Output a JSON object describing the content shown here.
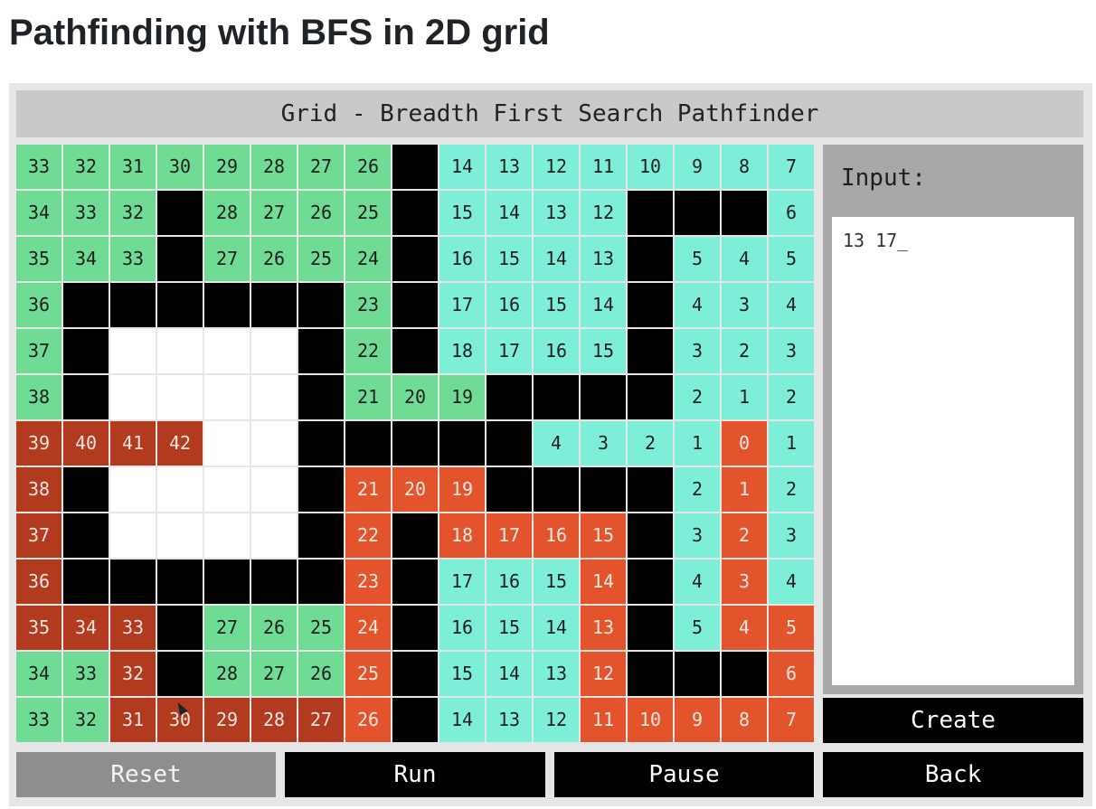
{
  "page": {
    "heading": "Pathfinding with BFS in 2D grid"
  },
  "window": {
    "title": "Grid - Breadth First Search Pathfinder"
  },
  "legend_colors": {
    "g": "#6fdb94",
    "c": "#7deed8",
    "r": "#b23a1f",
    "o": "#e4542c",
    "w": "#000000",
    "e": "#ffffff"
  },
  "grid": {
    "rows": [
      [
        [
          "g",
          "33"
        ],
        [
          "g",
          "32"
        ],
        [
          "g",
          "31"
        ],
        [
          "g",
          "30"
        ],
        [
          "g",
          "29"
        ],
        [
          "g",
          "28"
        ],
        [
          "g",
          "27"
        ],
        [
          "g",
          "26"
        ],
        [
          "w",
          ""
        ],
        [
          "c",
          "14"
        ],
        [
          "c",
          "13"
        ],
        [
          "c",
          "12"
        ],
        [
          "c",
          "11"
        ],
        [
          "c",
          "10"
        ],
        [
          "c",
          "9"
        ],
        [
          "c",
          "8"
        ],
        [
          "c",
          "7"
        ]
      ],
      [
        [
          "g",
          "34"
        ],
        [
          "g",
          "33"
        ],
        [
          "g",
          "32"
        ],
        [
          "w",
          ""
        ],
        [
          "g",
          "28"
        ],
        [
          "g",
          "27"
        ],
        [
          "g",
          "26"
        ],
        [
          "g",
          "25"
        ],
        [
          "w",
          ""
        ],
        [
          "c",
          "15"
        ],
        [
          "c",
          "14"
        ],
        [
          "c",
          "13"
        ],
        [
          "c",
          "12"
        ],
        [
          "w",
          ""
        ],
        [
          "w",
          ""
        ],
        [
          "w",
          ""
        ],
        [
          "c",
          "6"
        ]
      ],
      [
        [
          "g",
          "35"
        ],
        [
          "g",
          "34"
        ],
        [
          "g",
          "33"
        ],
        [
          "w",
          ""
        ],
        [
          "g",
          "27"
        ],
        [
          "g",
          "26"
        ],
        [
          "g",
          "25"
        ],
        [
          "g",
          "24"
        ],
        [
          "w",
          ""
        ],
        [
          "c",
          "16"
        ],
        [
          "c",
          "15"
        ],
        [
          "c",
          "14"
        ],
        [
          "c",
          "13"
        ],
        [
          "w",
          ""
        ],
        [
          "c",
          "5"
        ],
        [
          "c",
          "4"
        ],
        [
          "c",
          "5"
        ]
      ],
      [
        [
          "g",
          "36"
        ],
        [
          "w",
          ""
        ],
        [
          "w",
          ""
        ],
        [
          "w",
          ""
        ],
        [
          "w",
          ""
        ],
        [
          "w",
          ""
        ],
        [
          "w",
          ""
        ],
        [
          "g",
          "23"
        ],
        [
          "w",
          ""
        ],
        [
          "c",
          "17"
        ],
        [
          "c",
          "16"
        ],
        [
          "c",
          "15"
        ],
        [
          "c",
          "14"
        ],
        [
          "w",
          ""
        ],
        [
          "c",
          "4"
        ],
        [
          "c",
          "3"
        ],
        [
          "c",
          "4"
        ]
      ],
      [
        [
          "g",
          "37"
        ],
        [
          "w",
          ""
        ],
        [
          "e",
          ""
        ],
        [
          "e",
          ""
        ],
        [
          "e",
          ""
        ],
        [
          "e",
          ""
        ],
        [
          "w",
          ""
        ],
        [
          "g",
          "22"
        ],
        [
          "w",
          ""
        ],
        [
          "c",
          "18"
        ],
        [
          "c",
          "17"
        ],
        [
          "c",
          "16"
        ],
        [
          "c",
          "15"
        ],
        [
          "w",
          ""
        ],
        [
          "c",
          "3"
        ],
        [
          "c",
          "2"
        ],
        [
          "c",
          "3"
        ]
      ],
      [
        [
          "g",
          "38"
        ],
        [
          "w",
          ""
        ],
        [
          "e",
          ""
        ],
        [
          "e",
          ""
        ],
        [
          "e",
          ""
        ],
        [
          "e",
          ""
        ],
        [
          "w",
          ""
        ],
        [
          "g",
          "21"
        ],
        [
          "g",
          "20"
        ],
        [
          "g",
          "19"
        ],
        [
          "w",
          ""
        ],
        [
          "w",
          ""
        ],
        [
          "w",
          ""
        ],
        [
          "w",
          ""
        ],
        [
          "c",
          "2"
        ],
        [
          "c",
          "1"
        ],
        [
          "c",
          "2"
        ]
      ],
      [
        [
          "r",
          "39"
        ],
        [
          "r",
          "40"
        ],
        [
          "r",
          "41"
        ],
        [
          "r",
          "42"
        ],
        [
          "e",
          ""
        ],
        [
          "e",
          ""
        ],
        [
          "w",
          ""
        ],
        [
          "w",
          ""
        ],
        [
          "w",
          ""
        ],
        [
          "w",
          ""
        ],
        [
          "w",
          ""
        ],
        [
          "c",
          "4"
        ],
        [
          "c",
          "3"
        ],
        [
          "c",
          "2"
        ],
        [
          "c",
          "1"
        ],
        [
          "o",
          "0"
        ],
        [
          "c",
          "1"
        ]
      ],
      [
        [
          "r",
          "38"
        ],
        [
          "w",
          ""
        ],
        [
          "e",
          ""
        ],
        [
          "e",
          ""
        ],
        [
          "e",
          ""
        ],
        [
          "e",
          ""
        ],
        [
          "w",
          ""
        ],
        [
          "o",
          "21"
        ],
        [
          "o",
          "20"
        ],
        [
          "o",
          "19"
        ],
        [
          "w",
          ""
        ],
        [
          "w",
          ""
        ],
        [
          "w",
          ""
        ],
        [
          "w",
          ""
        ],
        [
          "c",
          "2"
        ],
        [
          "o",
          "1"
        ],
        [
          "c",
          "2"
        ]
      ],
      [
        [
          "r",
          "37"
        ],
        [
          "w",
          ""
        ],
        [
          "e",
          ""
        ],
        [
          "e",
          ""
        ],
        [
          "e",
          ""
        ],
        [
          "e",
          ""
        ],
        [
          "w",
          ""
        ],
        [
          "o",
          "22"
        ],
        [
          "w",
          ""
        ],
        [
          "o",
          "18"
        ],
        [
          "o",
          "17"
        ],
        [
          "o",
          "16"
        ],
        [
          "o",
          "15"
        ],
        [
          "w",
          ""
        ],
        [
          "c",
          "3"
        ],
        [
          "o",
          "2"
        ],
        [
          "c",
          "3"
        ]
      ],
      [
        [
          "r",
          "36"
        ],
        [
          "w",
          ""
        ],
        [
          "w",
          ""
        ],
        [
          "w",
          ""
        ],
        [
          "w",
          ""
        ],
        [
          "w",
          ""
        ],
        [
          "w",
          ""
        ],
        [
          "o",
          "23"
        ],
        [
          "w",
          ""
        ],
        [
          "c",
          "17"
        ],
        [
          "c",
          "16"
        ],
        [
          "c",
          "15"
        ],
        [
          "o",
          "14"
        ],
        [
          "w",
          ""
        ],
        [
          "c",
          "4"
        ],
        [
          "o",
          "3"
        ],
        [
          "c",
          "4"
        ]
      ],
      [
        [
          "r",
          "35"
        ],
        [
          "r",
          "34"
        ],
        [
          "r",
          "33"
        ],
        [
          "w",
          ""
        ],
        [
          "g",
          "27"
        ],
        [
          "g",
          "26"
        ],
        [
          "g",
          "25"
        ],
        [
          "o",
          "24"
        ],
        [
          "w",
          ""
        ],
        [
          "c",
          "16"
        ],
        [
          "c",
          "15"
        ],
        [
          "c",
          "14"
        ],
        [
          "o",
          "13"
        ],
        [
          "w",
          ""
        ],
        [
          "c",
          "5"
        ],
        [
          "o",
          "4"
        ],
        [
          "o",
          "5"
        ]
      ],
      [
        [
          "g",
          "34"
        ],
        [
          "g",
          "33"
        ],
        [
          "r",
          "32"
        ],
        [
          "w",
          ""
        ],
        [
          "g",
          "28"
        ],
        [
          "g",
          "27"
        ],
        [
          "g",
          "26"
        ],
        [
          "o",
          "25"
        ],
        [
          "w",
          ""
        ],
        [
          "c",
          "15"
        ],
        [
          "c",
          "14"
        ],
        [
          "c",
          "13"
        ],
        [
          "o",
          "12"
        ],
        [
          "w",
          ""
        ],
        [
          "w",
          ""
        ],
        [
          "w",
          ""
        ],
        [
          "o",
          "6"
        ]
      ],
      [
        [
          "g",
          "33"
        ],
        [
          "g",
          "32"
        ],
        [
          "r",
          "31"
        ],
        [
          "r",
          "30"
        ],
        [
          "r",
          "29"
        ],
        [
          "r",
          "28"
        ],
        [
          "r",
          "27"
        ],
        [
          "o",
          "26"
        ],
        [
          "w",
          ""
        ],
        [
          "c",
          "14"
        ],
        [
          "c",
          "13"
        ],
        [
          "c",
          "12"
        ],
        [
          "o",
          "11"
        ],
        [
          "o",
          "10"
        ],
        [
          "o",
          "9"
        ],
        [
          "o",
          "8"
        ],
        [
          "o",
          "7"
        ]
      ]
    ]
  },
  "input_panel": {
    "label": "Input:",
    "value": "13 17_"
  },
  "buttons": {
    "create": "Create",
    "reset": "Reset",
    "run": "Run",
    "pause": "Pause",
    "back": "Back"
  }
}
